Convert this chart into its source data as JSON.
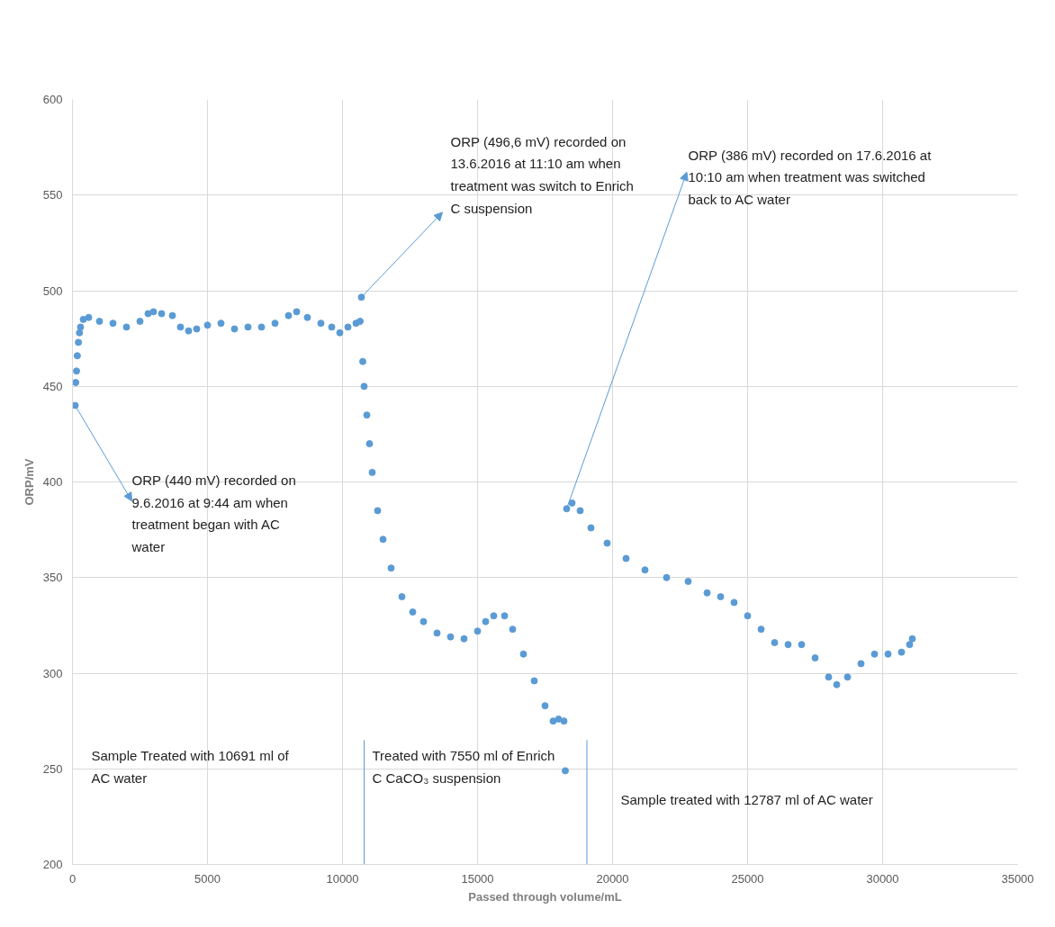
{
  "chart_data": {
    "type": "scatter",
    "xlabel": "Passed through volume/mL",
    "ylabel": "ORP/mV",
    "xlim": [
      0,
      35000
    ],
    "xticks": [
      0,
      5000,
      10000,
      15000,
      20000,
      25000,
      30000,
      35000
    ],
    "ylim": [
      200,
      600
    ],
    "yticks": [
      200,
      250,
      300,
      350,
      400,
      450,
      500,
      550,
      600
    ],
    "grid": true,
    "marker": "circle",
    "series": [
      {
        "color": "#5b9bd5",
        "x": [
          100,
          120,
          150,
          180,
          220,
          260,
          300,
          400,
          600,
          1000,
          1500,
          2000,
          2500,
          2800,
          3000,
          3300,
          3700,
          4000,
          4300,
          4600,
          5000,
          5500,
          6000,
          6500,
          7000,
          7500,
          8000,
          8300,
          8700,
          9200,
          9600,
          9900,
          10200,
          10500,
          10650,
          10700,
          10750,
          10800,
          10900,
          11000,
          11100,
          11300,
          11500,
          11800,
          12200,
          12600,
          13000,
          13500,
          14000,
          14500,
          15000,
          15300,
          15600,
          16000,
          16300,
          16700,
          17100,
          17500,
          17800,
          18000,
          18200,
          18250,
          18300,
          18500,
          18800,
          19200,
          19800,
          20500,
          21200,
          22000,
          22800,
          23500,
          24000,
          24500,
          25000,
          25500,
          26000,
          26500,
          27000,
          27500,
          28000,
          28300,
          28700,
          29200,
          29700,
          30200,
          30700,
          31000,
          31100
        ],
        "values": [
          440,
          452,
          458,
          466,
          473,
          478,
          481,
          485,
          486,
          484,
          483,
          481,
          484,
          488,
          489,
          488,
          487,
          481,
          479,
          480,
          482,
          483,
          480,
          481,
          481,
          483,
          487,
          489,
          486,
          483,
          481,
          478,
          481,
          483,
          484,
          496.6,
          463,
          450,
          435,
          420,
          405,
          385,
          370,
          355,
          340,
          332,
          327,
          321,
          319,
          318,
          322,
          327,
          330,
          330,
          323,
          310,
          296,
          283,
          275,
          276,
          275,
          249,
          386,
          389,
          385,
          376,
          368,
          360,
          354,
          350,
          348,
          342,
          340,
          337,
          330,
          323,
          316,
          315,
          315,
          308,
          298,
          294,
          298,
          305,
          310,
          310,
          311,
          315,
          318
        ]
      }
    ],
    "ref_lines": [
      {
        "axis": "x",
        "value": 10800,
        "color": "#5b9bd5"
      },
      {
        "axis": "x",
        "value": 19050,
        "color": "#5b9bd5"
      }
    ],
    "annotations": [
      {
        "text": "ORP (440 mV) recorded on 9.6.2016 at 9:44 am when treatment began with AC water",
        "x": 100,
        "y": 440
      },
      {
        "text": "ORP (496,6 mV) recorded on 13.6.2016 at 11:10 am when treatment was switch to Enrich C suspension",
        "x": 10700,
        "y": 496.6
      },
      {
        "text": "ORP (386 mV) recorded on 17.6.2016 at 10:10 am when treatment was switched back to AC water",
        "x": 18300,
        "y": 386
      },
      "Sample Treated with 10691 ml of AC water",
      "Treated with 7550 ml of Enrich C CaCO₃ suspension",
      "Sample treated with 12787 ml of AC water"
    ]
  }
}
